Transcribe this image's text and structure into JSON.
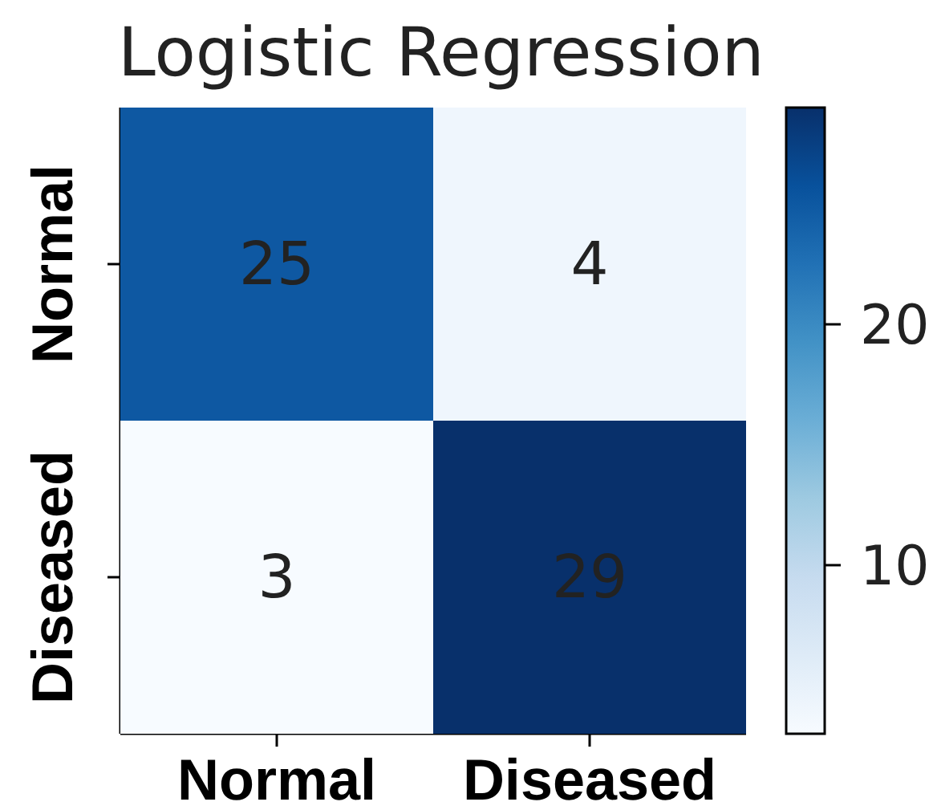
{
  "chart_data": {
    "type": "heatmap",
    "title": "Logistic Regression",
    "categories": [
      "Normal",
      "Diseased"
    ],
    "y_categories": [
      "Normal",
      "Diseased"
    ],
    "cells": [
      [
        25,
        4
      ],
      [
        3,
        29
      ]
    ],
    "clim": [
      3,
      29
    ],
    "cticks": [
      10,
      20
    ],
    "data_labels": true
  }
}
